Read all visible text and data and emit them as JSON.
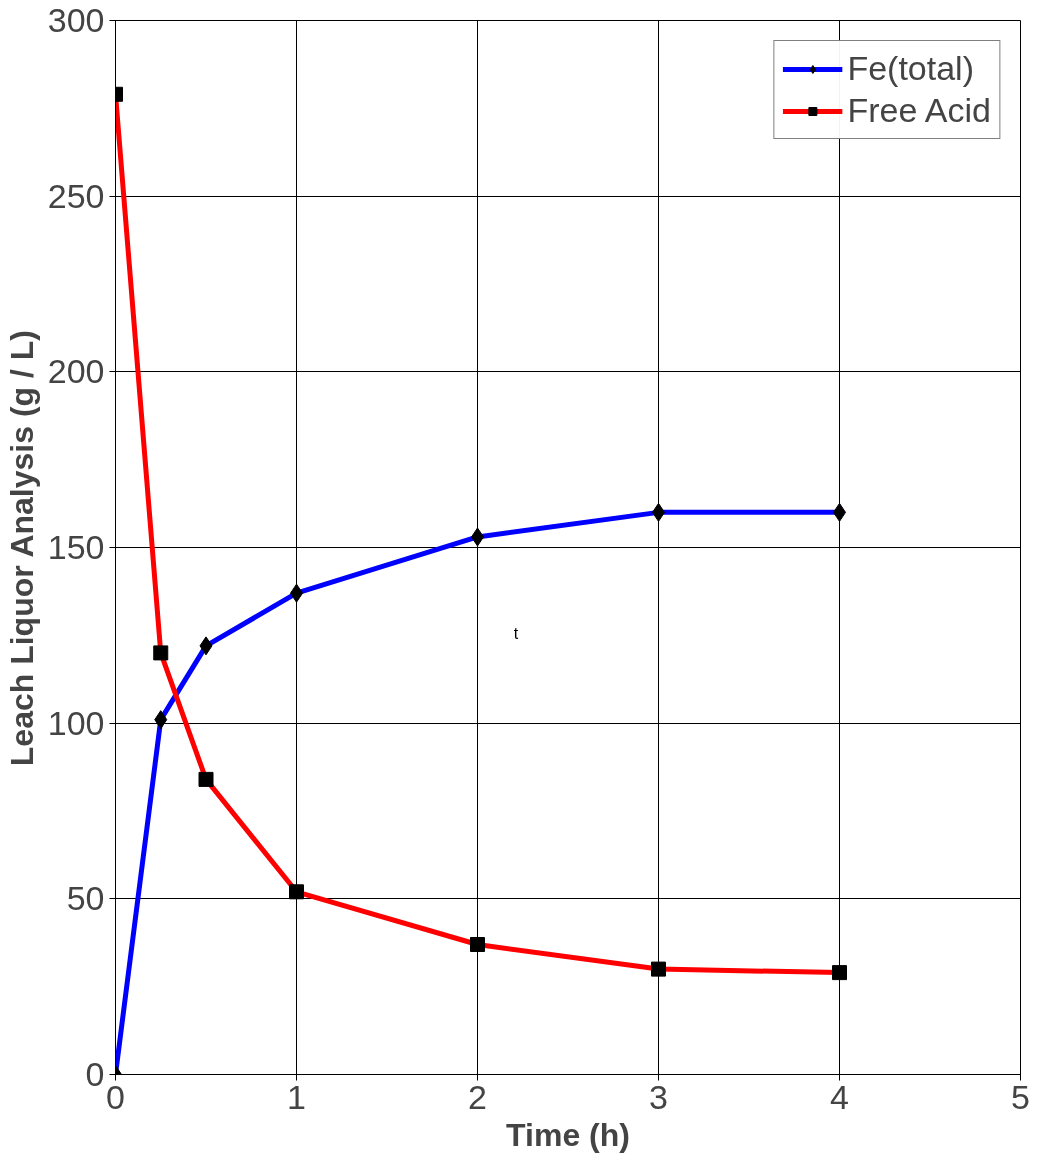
{
  "chart_data": {
    "type": "line",
    "xlabel": "Time (h)",
    "ylabel": "Leach Liquor Analysis (g / L)",
    "x": [
      0,
      0.25,
      0.5,
      1,
      2,
      3,
      4
    ],
    "series": [
      {
        "name": "Fe(total)",
        "color": "#0000ff",
        "values": [
          0,
          101,
          122,
          137,
          153,
          160,
          160
        ],
        "marker": "diamond"
      },
      {
        "name": "Free Acid",
        "color": "#ff0000",
        "values": [
          279,
          120,
          84,
          52,
          37,
          30,
          29
        ],
        "marker": "square"
      }
    ],
    "xlim": [
      0,
      5
    ],
    "xticks": [
      0,
      1,
      2,
      3,
      4,
      5
    ],
    "ylim": [
      0,
      300
    ],
    "yticks": [
      0,
      50,
      100,
      150,
      200,
      250,
      300
    ],
    "grid": true,
    "legend": "top right",
    "line_style": "solid",
    "annotations": [
      "t"
    ]
  }
}
